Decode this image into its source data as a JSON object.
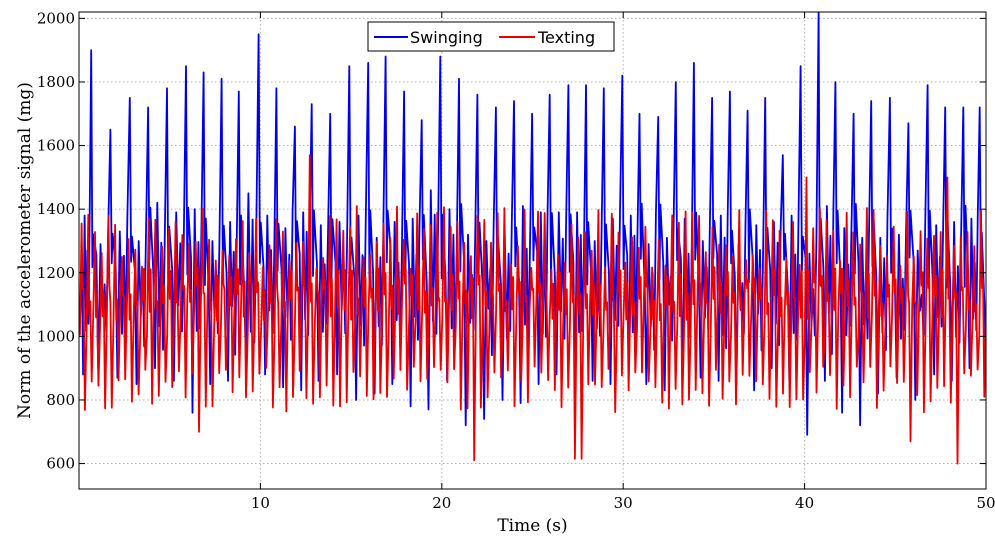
{
  "chart_data": {
    "type": "line",
    "xlabel": "Time (s)",
    "ylabel": "Norm of the accelerometer signal (mg)",
    "xlim": [
      0,
      50
    ],
    "ylim": [
      520,
      2020
    ],
    "xticks": [
      10,
      20,
      30,
      40,
      50
    ],
    "yticks": [
      600,
      800,
      1000,
      1200,
      1400,
      1600,
      1800,
      2000
    ],
    "grid": true,
    "legend_position": "top-center",
    "series": [
      {
        "name": "Swinging",
        "color": "#0000ee",
        "peak_times": [
          0.67,
          1.73,
          2.8,
          3.81,
          4.85,
          5.9,
          6.87,
          7.86,
          8.81,
          9.9,
          10.88,
          11.9,
          12.83,
          13.85,
          14.9,
          15.94,
          16.9,
          17.92,
          18.89,
          19.92,
          20.95,
          21.96,
          22.98,
          23.98,
          24.98,
          25.95,
          26.98,
          27.95,
          28.93,
          29.95,
          30.9,
          31.93,
          32.9,
          33.9,
          34.9,
          35.88,
          36.86,
          37.83,
          38.8,
          39.78,
          40.77,
          41.7,
          42.7,
          43.67,
          44.7,
          45.72,
          46.78,
          47.75,
          48.75,
          49.65
        ],
        "peak_values": [
          1900,
          1650,
          1750,
          1720,
          1780,
          1850,
          1830,
          1810,
          1770,
          1950,
          1780,
          1660,
          1730,
          1700,
          1850,
          1860,
          1880,
          1770,
          1680,
          1880,
          1810,
          1760,
          1720,
          1740,
          1700,
          1760,
          1790,
          1790,
          1780,
          1820,
          1700,
          1690,
          1800,
          1860,
          1750,
          1770,
          1710,
          1750,
          1570,
          1850,
          2020,
          1800,
          1700,
          1740,
          1750,
          1670,
          1790,
          1720,
          1720,
          1720
        ],
        "trough_values": [
          880,
          900,
          870,
          850,
          900,
          860,
          760,
          850,
          860,
          920,
          880,
          840,
          830,
          860,
          880,
          800,
          820,
          850,
          780,
          770,
          860,
          720,
          740,
          800,
          790,
          850,
          880,
          820,
          860,
          850,
          880,
          850,
          830,
          830,
          870,
          860,
          850,
          830,
          900,
          850,
          690,
          860,
          760,
          720,
          820,
          870,
          800,
          880,
          860,
          900
        ],
        "secondary_peak_values": [
          1380,
          1290,
          1330,
          1300,
          1420,
          1390,
          1400,
          1300,
          1360,
          1450,
          1380,
          1340,
          1390,
          1350,
          1360,
          1380,
          1310,
          1360,
          1370,
          1460,
          1400,
          1320,
          1300,
          1330,
          1410,
          1390,
          1390,
          1390,
          1300,
          1370,
          1380,
          1290,
          1310,
          1370,
          1300,
          1380,
          1290,
          1350,
          1360,
          1380,
          1260,
          1410,
          1340,
          1310,
          1310,
          1320,
          1270,
          1350,
          1360,
          1370
        ]
      },
      {
        "name": "Texting",
        "color": "#ee0000",
        "oscillation_period_s": 0.37,
        "value_range": [
          600,
          1570
        ],
        "typical_range": [
          780,
          1290
        ],
        "notable_extrema": [
          {
            "x": 12.6,
            "y": 1570
          },
          {
            "x": 21.7,
            "y": 610
          },
          {
            "x": 27.5,
            "y": 615
          },
          {
            "x": 48.5,
            "y": 600
          },
          {
            "x": 40.1,
            "y": 1500
          },
          {
            "x": 47.9,
            "y": 1500
          },
          {
            "x": 6.6,
            "y": 700
          },
          {
            "x": 45.8,
            "y": 670
          }
        ]
      }
    ]
  }
}
